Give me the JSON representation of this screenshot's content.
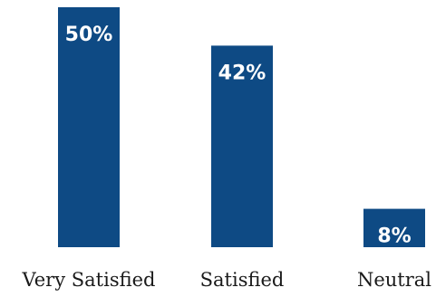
{
  "colors": {
    "bar": "#0E4A84",
    "bar_label": "#FFFFFF",
    "tick_label": "#1A1A1A",
    "background": "#FFFFFF"
  },
  "chart_data": {
    "type": "bar",
    "categories": [
      "Very Satisfied",
      "Satisfied",
      "Neutral"
    ],
    "values": [
      50,
      42,
      8
    ],
    "value_labels": [
      "50%",
      "42%",
      "8%"
    ],
    "unit": "%",
    "ylim": [
      0,
      50
    ],
    "grid": false,
    "legend": "none"
  }
}
